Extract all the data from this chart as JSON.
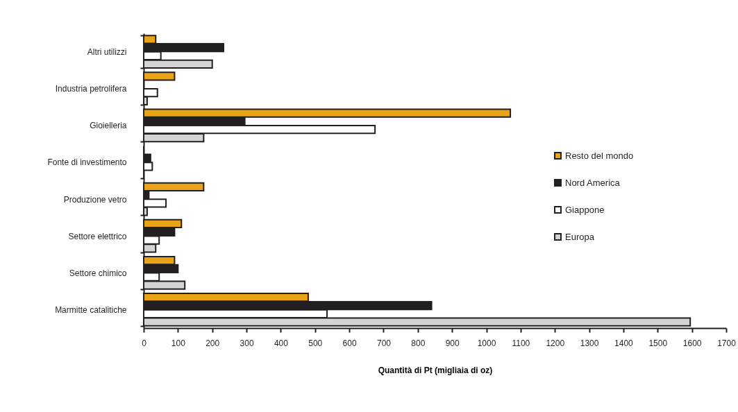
{
  "chart_data": {
    "type": "bar",
    "orientation": "horizontal",
    "xlabel": "Quantità di Pt (migliaia di oz)",
    "categories": [
      "Altri utilizzi",
      "Industria petrolifera",
      "Gioielleria",
      "Fonte di investimento",
      "Produzione vetro",
      "Settore elettrico",
      "Settore chimico",
      "Marmitte catalitiche"
    ],
    "series": [
      {
        "name": "Resto del mondo",
        "color": "#e8a317",
        "values": [
          35,
          90,
          1070,
          0,
          175,
          110,
          90,
          480
        ]
      },
      {
        "name": "Nord America",
        "color": "#231f20",
        "values": [
          233,
          0,
          295,
          20,
          15,
          90,
          100,
          840
        ]
      },
      {
        "name": "Giappone",
        "color": "#ffffff",
        "values": [
          50,
          40,
          675,
          25,
          65,
          45,
          45,
          535
        ]
      },
      {
        "name": "Europa",
        "color": "#d4d4d4",
        "values": [
          200,
          10,
          175,
          0,
          10,
          35,
          120,
          1595
        ]
      }
    ],
    "xlim": [
      0,
      1700
    ],
    "xticks": [
      0,
      100,
      200,
      300,
      400,
      500,
      600,
      700,
      800,
      900,
      1000,
      1100,
      1200,
      1300,
      1400,
      1500,
      1600,
      1700
    ],
    "grid": false,
    "legend": "right"
  }
}
